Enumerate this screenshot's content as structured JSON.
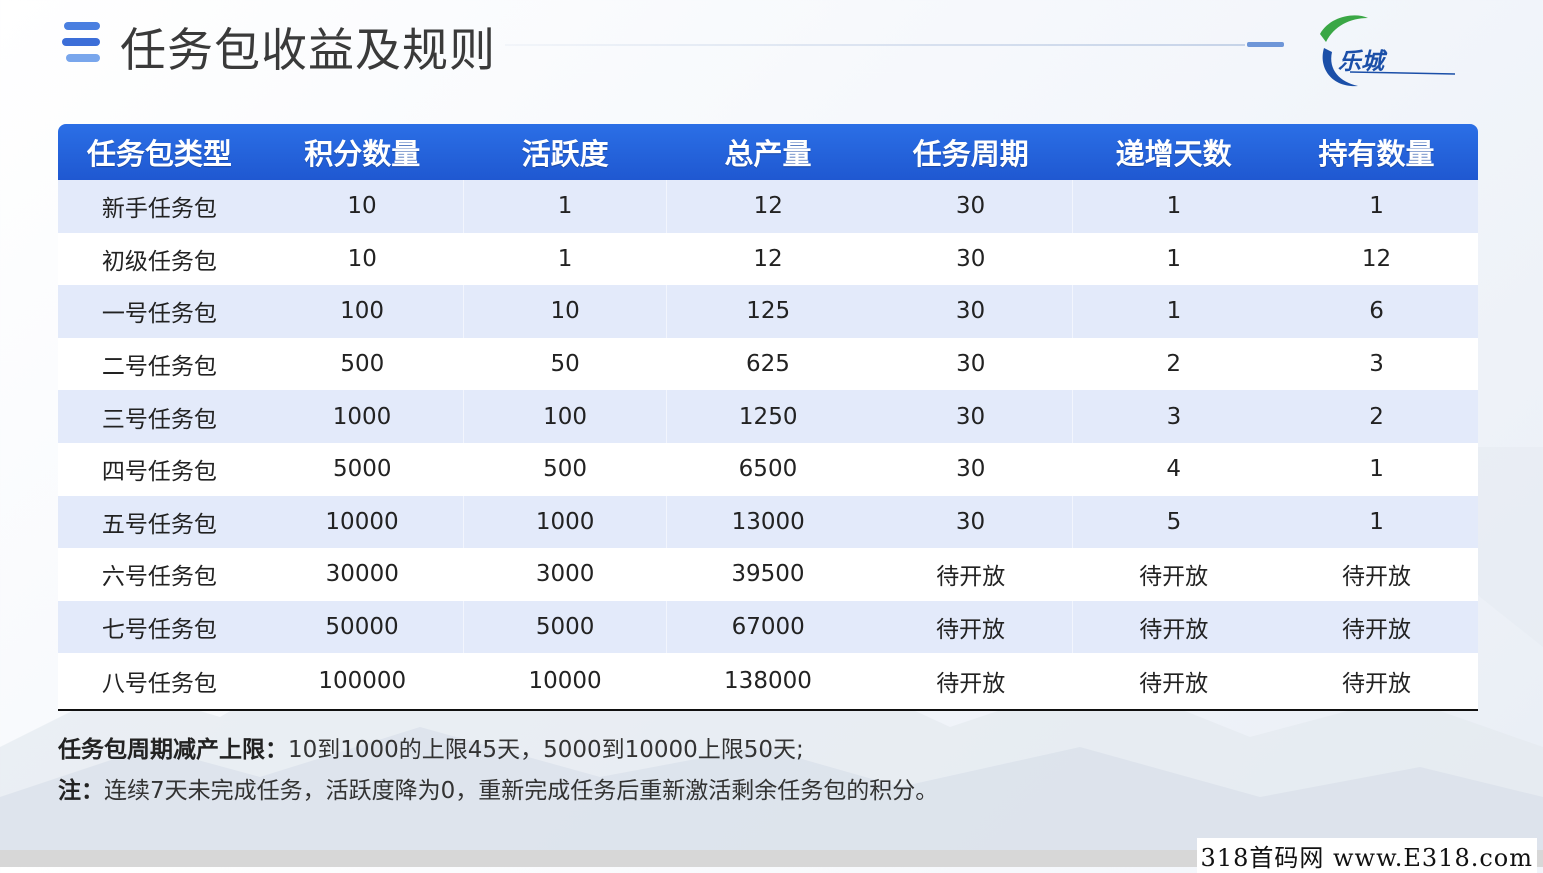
{
  "title": "任务包收益及规则",
  "logo": {
    "text": "乐城",
    "colors": {
      "green": "#3aa745",
      "blue": "#1b4fa8"
    }
  },
  "colors": {
    "header_bg": "#2364dd",
    "row_alt": "#e3eafa",
    "title": "#3a3a3a"
  },
  "table": {
    "headers": [
      "任务包类型",
      "积分数量",
      "活跃度",
      "总产量",
      "任务周期",
      "递增天数",
      "持有数量"
    ],
    "rows": [
      [
        "新手任务包",
        "10",
        "1",
        "12",
        "30",
        "1",
        "1"
      ],
      [
        "初级任务包",
        "10",
        "1",
        "12",
        "30",
        "1",
        "12"
      ],
      [
        "一号任务包",
        "100",
        "10",
        "125",
        "30",
        "1",
        "6"
      ],
      [
        "二号任务包",
        "500",
        "50",
        "625",
        "30",
        "2",
        "3"
      ],
      [
        "三号任务包",
        "1000",
        "100",
        "1250",
        "30",
        "3",
        "2"
      ],
      [
        "四号任务包",
        "5000",
        "500",
        "6500",
        "30",
        "4",
        "1"
      ],
      [
        "五号任务包",
        "10000",
        "1000",
        "13000",
        "30",
        "5",
        "1"
      ],
      [
        "六号任务包",
        "30000",
        "3000",
        "39500",
        "待开放",
        "待开放",
        "待开放"
      ],
      [
        "七号任务包",
        "50000",
        "5000",
        "67000",
        "待开放",
        "待开放",
        "待开放"
      ],
      [
        "八号任务包",
        "100000",
        "10000",
        "138000",
        "待开放",
        "待开放",
        "待开放"
      ]
    ]
  },
  "notes": {
    "line1_label": "任务包周期减产上限：",
    "line1_text": "10到1000的上限45天，5000到10000上限50天;",
    "line2_label": "注：",
    "line2_text": "连续7天未完成任务，活跃度降为0，重新完成任务后重新激活剩余任务包的积分。"
  },
  "watermark": "318首码网 www.E318.com"
}
